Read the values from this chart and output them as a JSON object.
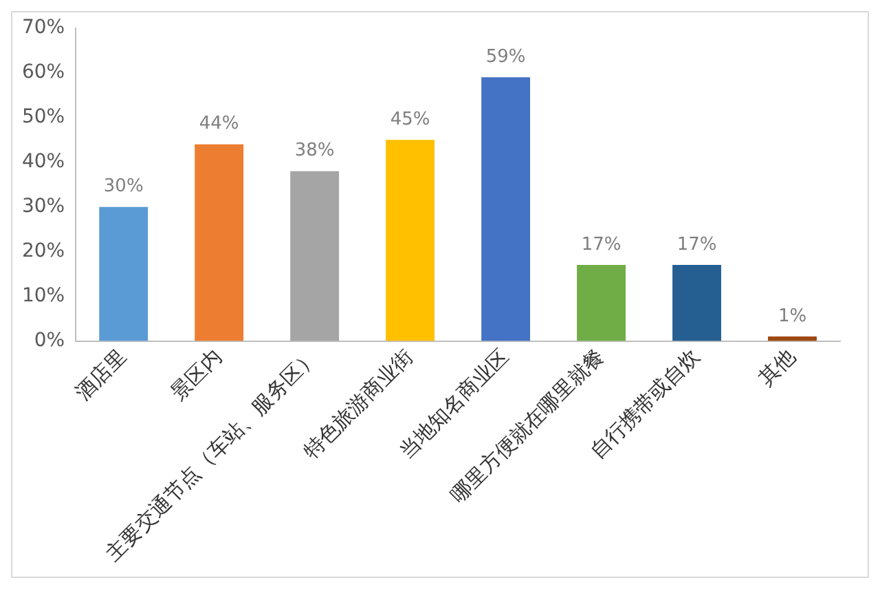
{
  "chart_data": {
    "type": "bar",
    "categories": [
      "酒店里",
      "景区内",
      "主要交通节点（车站、服务区）",
      "特色旅游商业街",
      "当地知名商业区",
      "哪里方便就在哪里就餐",
      "自行携带或自炊",
      "其他"
    ],
    "values": [
      30,
      44,
      38,
      45,
      59,
      17,
      17,
      1
    ],
    "colors": [
      "#5b9bd5",
      "#ed7d31",
      "#a5a5a5",
      "#ffc000",
      "#4472c4",
      "#70ad47",
      "#255e91",
      "#9e480e"
    ],
    "value_labels": [
      "30%",
      "44%",
      "38%",
      "45%",
      "59%",
      "17%",
      "17%",
      "1%"
    ],
    "ylim": [
      0,
      70
    ],
    "yticks": [
      {
        "value": 0,
        "label": "0%"
      },
      {
        "value": 10,
        "label": "10%"
      },
      {
        "value": 20,
        "label": "20%"
      },
      {
        "value": 30,
        "label": "30%"
      },
      {
        "value": 40,
        "label": "40%"
      },
      {
        "value": 50,
        "label": "50%"
      },
      {
        "value": 60,
        "label": "60%"
      },
      {
        "value": 70,
        "label": "70%"
      }
    ],
    "grid": false,
    "legend": false
  }
}
